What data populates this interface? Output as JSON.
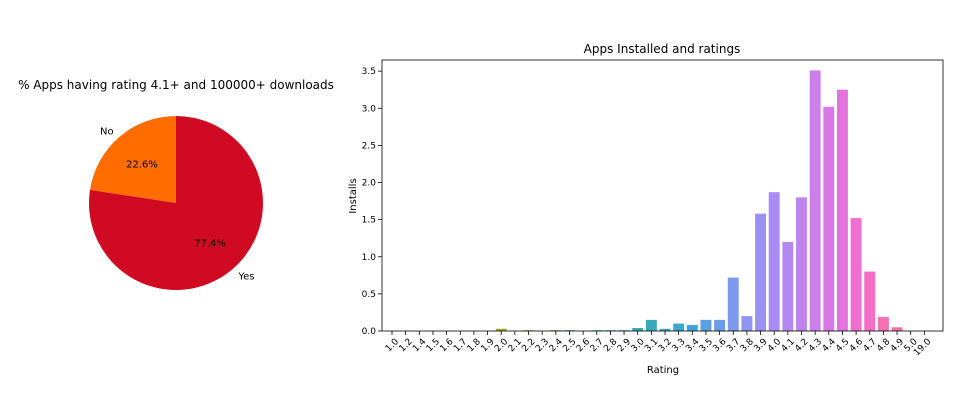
{
  "chart_data": [
    {
      "type": "pie",
      "title": "% Apps having rating 4.1+ and 100000+ downloads",
      "slices": [
        {
          "label": "No",
          "value": 22.6,
          "pct_label": "22.6%",
          "color": "#ff6d00"
        },
        {
          "label": "Yes",
          "value": 77.4,
          "pct_label": "77.4%",
          "color": "#d10a24"
        }
      ]
    },
    {
      "type": "bar",
      "title": "Apps Installed and ratings",
      "xlabel": "Rating",
      "ylabel": "Installs",
      "ylim": [
        0,
        3.65
      ],
      "yticks": [
        "0.0",
        "0.5",
        "1.0",
        "1.5",
        "2.0",
        "2.5",
        "3.0",
        "3.5"
      ],
      "categories": [
        "1.0",
        "1.2",
        "1.4",
        "1.5",
        "1.6",
        "1.7",
        "1.8",
        "1.9",
        "2.0",
        "2.1",
        "2.2",
        "2.3",
        "2.4",
        "2.5",
        "2.6",
        "2.7",
        "2.8",
        "2.9",
        "3.0",
        "3.1",
        "3.2",
        "3.3",
        "3.4",
        "3.5",
        "3.6",
        "3.7",
        "3.8",
        "3.9",
        "4.0",
        "4.1",
        "4.2",
        "4.3",
        "4.4",
        "4.5",
        "4.6",
        "4.7",
        "4.8",
        "4.9",
        "5.0",
        "19.0"
      ],
      "values": [
        0.0,
        0.0,
        0.0,
        0.0,
        0.0,
        0.0,
        0.0,
        0.0,
        0.03,
        0.0,
        0.01,
        0.0,
        0.01,
        0.01,
        0.0,
        0.01,
        0.01,
        0.01,
        0.04,
        0.15,
        0.03,
        0.1,
        0.08,
        0.15,
        0.15,
        0.72,
        0.2,
        1.58,
        1.87,
        1.2,
        1.8,
        3.51,
        3.02,
        3.25,
        1.52,
        0.8,
        0.19,
        0.05,
        0.0,
        0.0
      ],
      "colors": [
        "#f0717a",
        "#ee7659",
        "#e88645",
        "#d99433",
        "#cd9a32",
        "#c09e32",
        "#b3a232",
        "#a6a531",
        "#9aa731",
        "#8ea831",
        "#80ab31",
        "#6fad31",
        "#56b031",
        "#34b34b",
        "#34b17a",
        "#35af91",
        "#36ad9f",
        "#36acaa",
        "#37aab3",
        "#38a9bb",
        "#39a7c4",
        "#3aa5cf",
        "#3ea3d9",
        "#58a0e0",
        "#6c9ce6",
        "#7e98ec",
        "#8e94f2",
        "#9c90f5",
        "#a88cf3",
        "#b488f0",
        "#c083ed",
        "#cc7eea",
        "#d878e4",
        "#e372dc",
        "#ee6ed1",
        "#f36ec4",
        "#f56fb5",
        "#f570a8",
        "#f4729b",
        "#f2748b"
      ]
    }
  ]
}
